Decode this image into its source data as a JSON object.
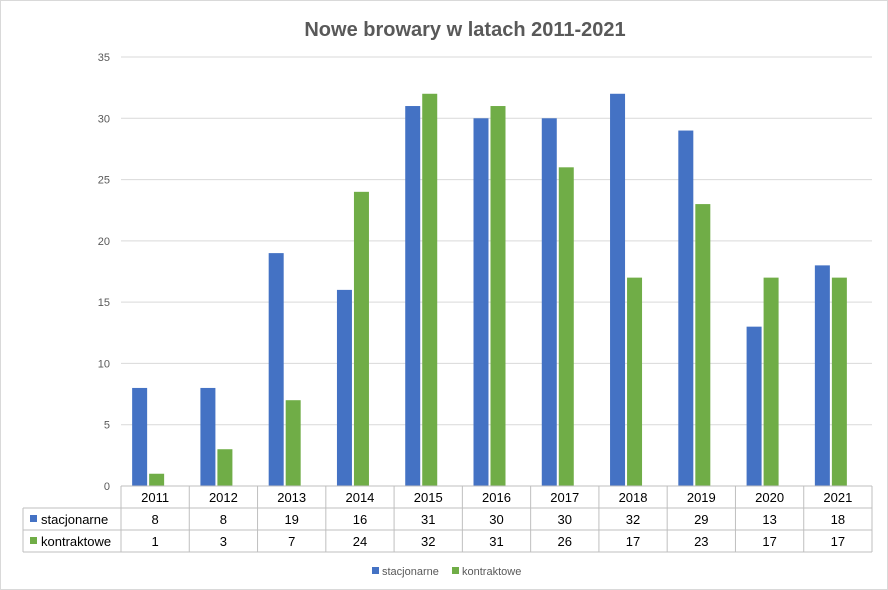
{
  "chart_data": {
    "type": "bar",
    "title": "Nowe browary w latach 2011-2021",
    "categories": [
      "2011",
      "2012",
      "2013",
      "2014",
      "2015",
      "2016",
      "2017",
      "2018",
      "2019",
      "2020",
      "2021"
    ],
    "series": [
      {
        "name": "stacjonarne",
        "color": "#4472C4",
        "values": [
          8,
          8,
          19,
          16,
          31,
          30,
          30,
          32,
          29,
          13,
          18
        ]
      },
      {
        "name": "kontraktowe",
        "color": "#70AD47",
        "values": [
          1,
          3,
          7,
          24,
          32,
          31,
          26,
          17,
          23,
          17,
          17
        ]
      }
    ],
    "xlabel": "",
    "ylabel": "",
    "ylim": [
      0,
      35
    ],
    "y_ticks": [
      0,
      5,
      10,
      15,
      20,
      25,
      30,
      35
    ],
    "grid": true,
    "data_table": true,
    "legend_position": "bottom"
  }
}
